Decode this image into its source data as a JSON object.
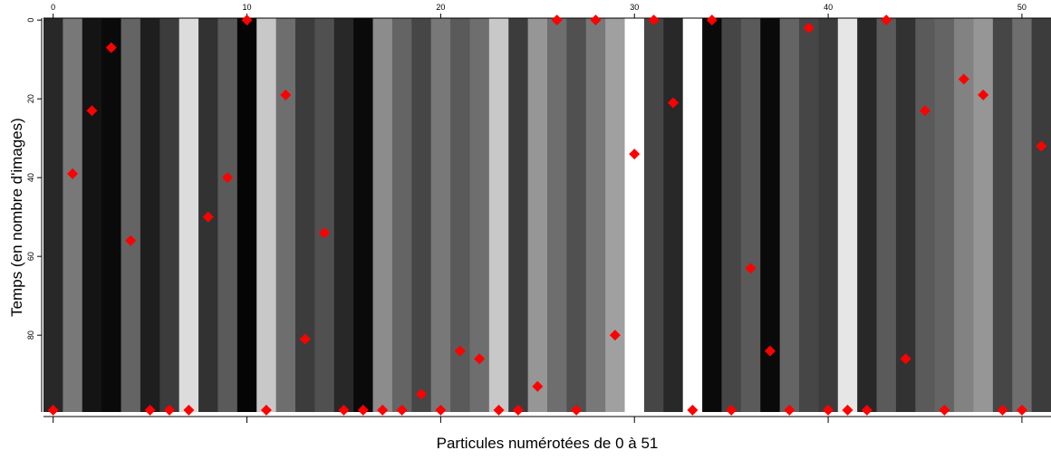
{
  "chart_data": {
    "type": "scatter",
    "x_label": "Particules numérotées de 0 à 51",
    "y_label": "Temps (en nombre d'images)",
    "xlim": [
      -0.5,
      51.5
    ],
    "ylim": [
      -0.5,
      99.5
    ],
    "xticks": [
      0,
      10,
      20,
      30,
      40,
      50
    ],
    "yticks": [
      0,
      20,
      40,
      60,
      80
    ],
    "y_inverted": true,
    "marker_color": "#ff0000",
    "column_gray": [
      40,
      120,
      20,
      10,
      100,
      30,
      60,
      220,
      50,
      90,
      5,
      200,
      110,
      60,
      80,
      40,
      10,
      140,
      100,
      70,
      120,
      90,
      110,
      200,
      60,
      150,
      110,
      80,
      120,
      160,
      255,
      70,
      40,
      255,
      10,
      70,
      90,
      10,
      100,
      70,
      60,
      230,
      40,
      90,
      50,
      90,
      100,
      130,
      150,
      70,
      110,
      60
    ],
    "x": [
      0,
      1,
      2,
      3,
      4,
      5,
      6,
      7,
      8,
      9,
      10,
      11,
      12,
      13,
      14,
      15,
      16,
      17,
      18,
      19,
      20,
      21,
      22,
      23,
      24,
      25,
      26,
      27,
      28,
      29,
      30,
      31,
      32,
      33,
      34,
      35,
      36,
      37,
      38,
      39,
      40,
      41,
      42,
      43,
      44,
      45,
      46,
      47,
      48,
      49,
      50,
      51
    ],
    "y": [
      99,
      39,
      23,
      7,
      56,
      99,
      99,
      99,
      50,
      40,
      0,
      99,
      19,
      81,
      54,
      99,
      99,
      99,
      99,
      95,
      99,
      84,
      86,
      99,
      99,
      93,
      0,
      99,
      0,
      80,
      34,
      0,
      21,
      99,
      0,
      99,
      63,
      84,
      99,
      2,
      99,
      99,
      99,
      0,
      86,
      23,
      99,
      15,
      19,
      99,
      99,
      32
    ]
  }
}
